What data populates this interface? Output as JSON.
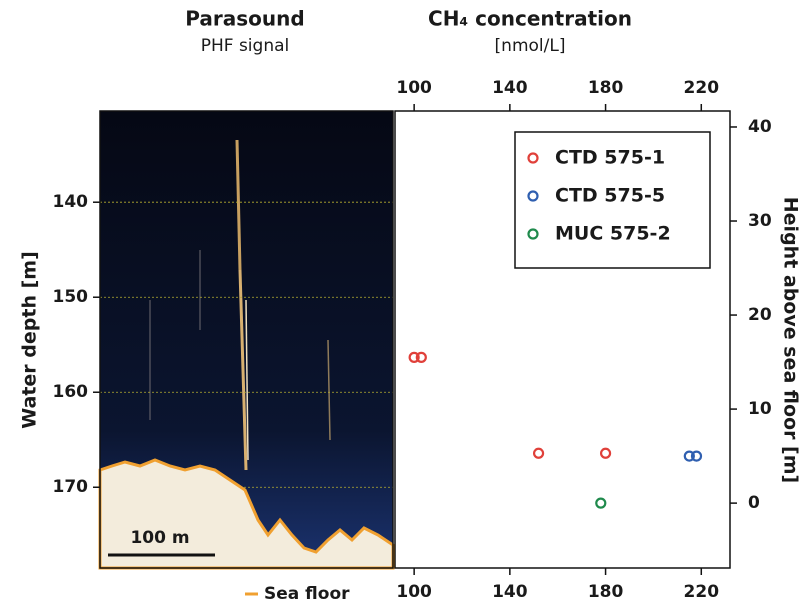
{
  "chart_data": [
    {
      "type": "echogram",
      "title": "Parasound",
      "subtitle": "PHF signal",
      "ylabel": "Water depth [m]",
      "ylim": [
        130.4,
        178.5
      ],
      "yticks": [
        140,
        150,
        160,
        170
      ],
      "grid": true,
      "scale_bar_label": "100 m",
      "sea_floor": {
        "name": "Sea floor",
        "color": "#f0a030"
      }
    },
    {
      "type": "scatter",
      "title": "CH₄ concentration",
      "subtitle": "[nmol/L]",
      "ylabel": "Height above sea floor [m]",
      "xlim": [
        92,
        232
      ],
      "xticks": [
        100,
        140,
        180,
        220
      ],
      "ylim": [
        -6.9,
        41.7
      ],
      "yticks": [
        0,
        10,
        20,
        30,
        40
      ],
      "legend": "upper right",
      "series": [
        {
          "name": "CTD 575-1",
          "color": "#e0403a",
          "x": [
            100,
            103,
            152,
            180
          ],
          "values": [
            15.5,
            15.5,
            5.3,
            5.3
          ]
        },
        {
          "name": "CTD 575-5",
          "color": "#2f5fb0",
          "x": [
            215,
            218
          ],
          "values": [
            5,
            5
          ]
        },
        {
          "name": "MUC 575-2",
          "color": "#1f8a4c",
          "x": [
            178
          ],
          "values": [
            0
          ]
        }
      ]
    }
  ]
}
